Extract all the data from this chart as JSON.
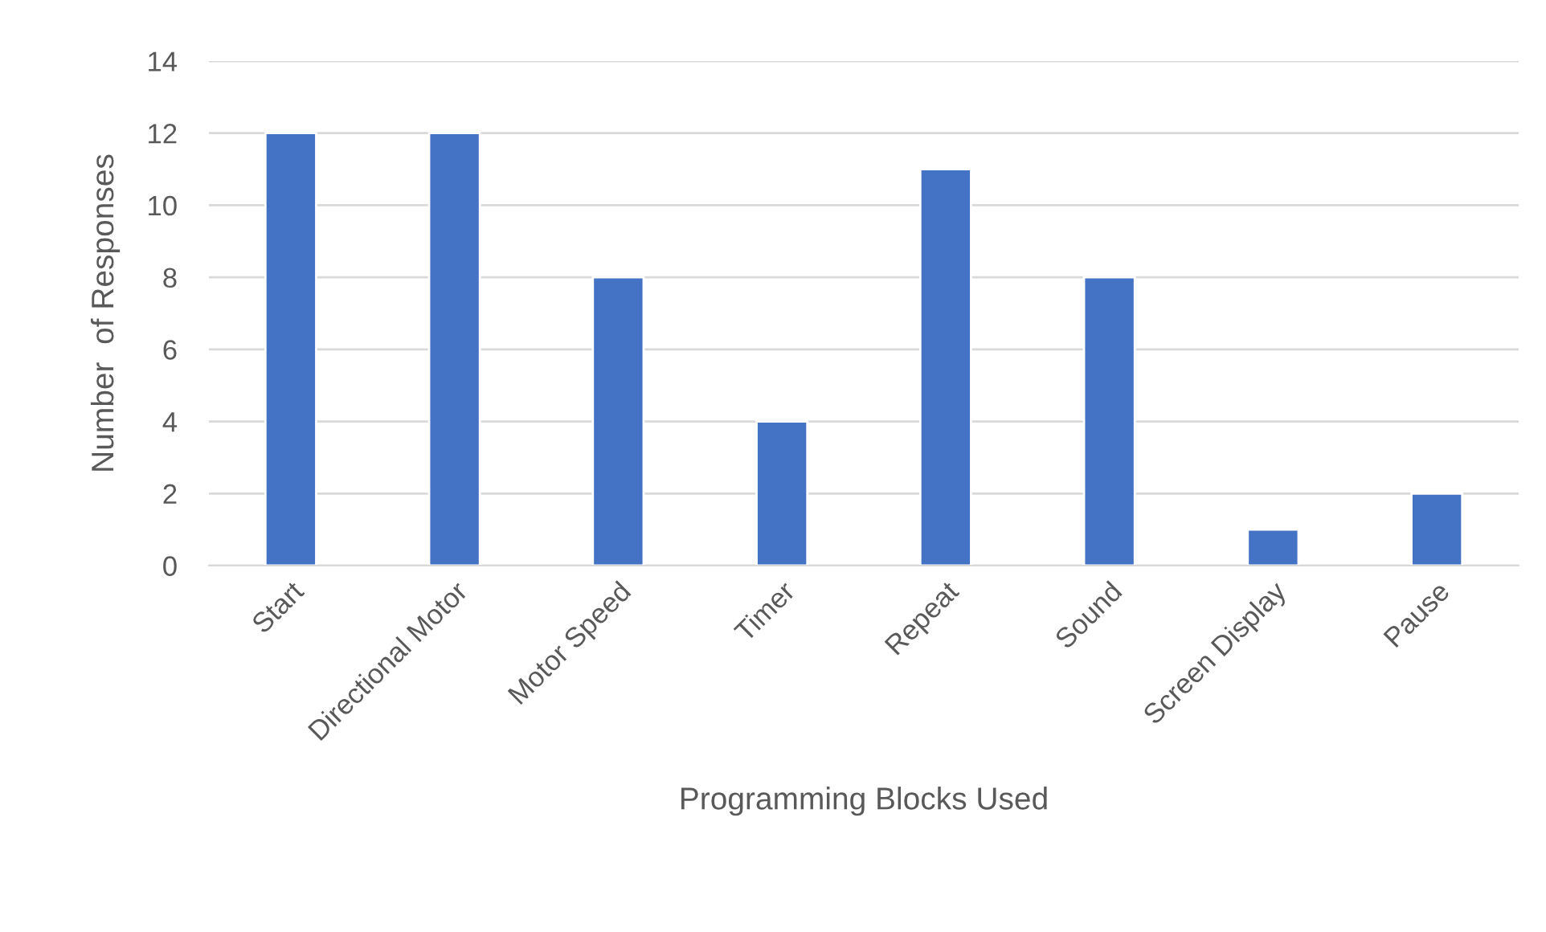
{
  "chart_data": {
    "type": "bar",
    "xlabel": "Programming Blocks Used",
    "ylabel": "Number  of Responses",
    "categories": [
      "Start",
      "Directional Motor",
      "Motor Speed",
      "Timer",
      "Repeat",
      "Sound",
      "Screen Display",
      "Pause"
    ],
    "values": [
      12,
      12,
      8,
      4,
      11,
      8,
      1,
      2
    ],
    "color": "#4472c4",
    "ylim": [
      0,
      14
    ],
    "yticks": [
      0,
      2,
      4,
      6,
      8,
      10,
      12,
      14
    ],
    "grid": "y"
  }
}
